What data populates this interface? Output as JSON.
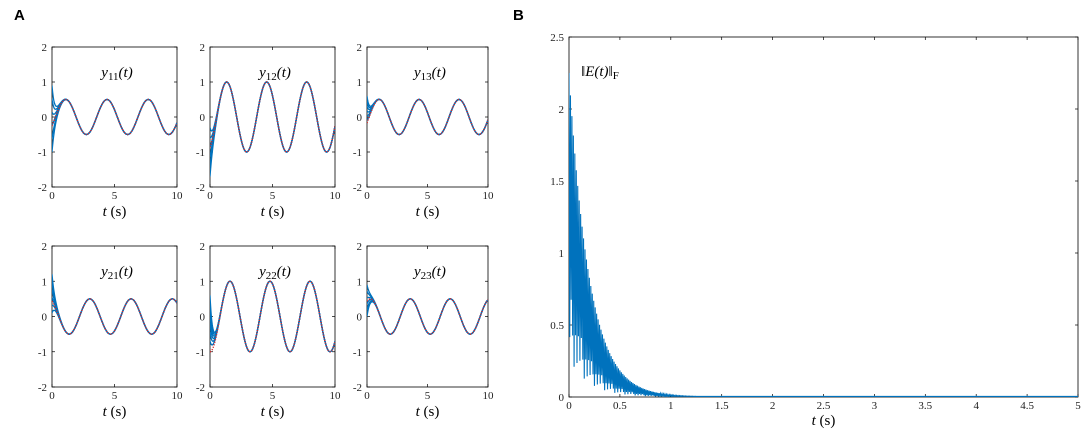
{
  "panels": {
    "A": {
      "label": "A"
    },
    "B": {
      "label": "B"
    }
  },
  "colors": {
    "estimate": "#0072BD",
    "reference": "#D62728"
  },
  "chart_data": [
    {
      "type": "line",
      "panel": "A",
      "title": "y11(t)",
      "xlabel": "t (s)",
      "xlim": [
        0,
        10
      ],
      "ylim": [
        -2,
        2
      ],
      "xticks": [
        0,
        5,
        10
      ],
      "yticks": [
        -2,
        -1,
        0,
        1,
        2
      ],
      "reference": {
        "amplitude": 0.5,
        "period": 3.3,
        "phase_deg": -30
      },
      "initial_spread": [
        -1.0,
        0.9
      ]
    },
    {
      "type": "line",
      "panel": "A",
      "title": "y12(t)",
      "xlabel": "t (s)",
      "xlim": [
        0,
        10
      ],
      "ylim": [
        -2,
        2
      ],
      "xticks": [
        0,
        5,
        10
      ],
      "yticks": [
        -2,
        -1,
        0,
        1,
        2
      ],
      "reference": {
        "amplitude": 1.0,
        "period": 3.2,
        "phase_deg": -60
      },
      "initial_spread": [
        -1.7,
        -0.3
      ]
    },
    {
      "type": "line",
      "panel": "A",
      "title": "y13(t)",
      "xlabel": "t (s)",
      "xlim": [
        0,
        10
      ],
      "ylim": [
        -2,
        2
      ],
      "xticks": [
        0,
        5,
        10
      ],
      "yticks": [
        -2,
        -1,
        0,
        1,
        2
      ],
      "reference": {
        "amplitude": 0.5,
        "period": 3.3,
        "phase_deg": -20
      },
      "initial_spread": [
        -0.1,
        0.6
      ]
    },
    {
      "type": "line",
      "panel": "A",
      "title": "y21(t)",
      "xlabel": "t (s)",
      "xlim": [
        0,
        10
      ],
      "ylim": [
        -2,
        2
      ],
      "xticks": [
        0,
        5,
        10
      ],
      "yticks": [
        -2,
        -1,
        0,
        1,
        2
      ],
      "reference": {
        "amplitude": 0.5,
        "period": 3.3,
        "phase_deg": 120
      },
      "initial_spread": [
        0.1,
        1.2
      ]
    },
    {
      "type": "line",
      "panel": "A",
      "title": "y22(t)",
      "xlabel": "t (s)",
      "xlim": [
        0,
        10
      ],
      "ylim": [
        -2,
        2
      ],
      "xticks": [
        0,
        5,
        10
      ],
      "yticks": [
        -2,
        -1,
        0,
        1,
        2
      ],
      "reference": {
        "amplitude": 1.0,
        "period": 3.2,
        "phase_deg": -90
      },
      "initial_spread": [
        -0.7,
        0.6
      ]
    },
    {
      "type": "line",
      "panel": "A",
      "title": "y23(t)",
      "xlabel": "t (s)",
      "xlim": [
        0,
        10
      ],
      "ylim": [
        -2,
        2
      ],
      "xticks": [
        0,
        5,
        10
      ],
      "yticks": [
        -2,
        -1,
        0,
        1,
        2
      ],
      "reference": {
        "amplitude": 0.5,
        "period": 3.3,
        "phase_deg": 60
      },
      "initial_spread": [
        0.0,
        0.9
      ]
    },
    {
      "type": "line",
      "panel": "B",
      "title": "||E(t)||F",
      "xlabel": "t (s)",
      "xlim": [
        0,
        5
      ],
      "ylim": [
        0,
        2.5
      ],
      "xticks": [
        0,
        0.5,
        1,
        1.5,
        2,
        2.5,
        3,
        3.5,
        4,
        4.5,
        5
      ],
      "yticks": [
        0,
        0.5,
        1,
        1.5,
        2,
        2.5
      ],
      "envelope": {
        "peak": 2.25,
        "decay_time_constant": 0.2
      }
    }
  ]
}
